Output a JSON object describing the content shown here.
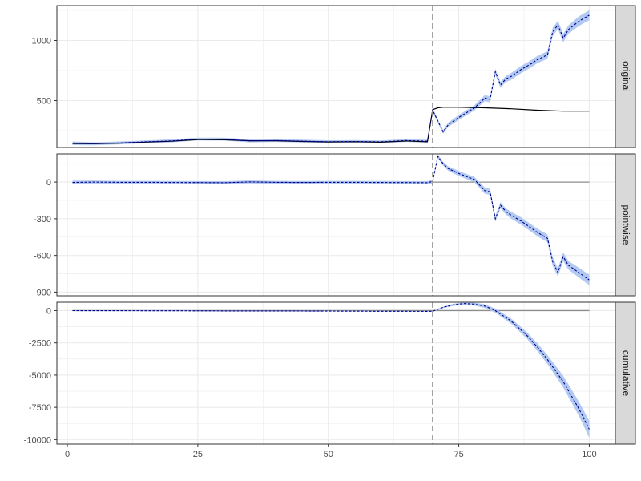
{
  "chart_data": {
    "type": "line",
    "x_ticks": [
      0,
      25,
      50,
      75,
      100
    ],
    "x_range": [
      -2,
      105
    ],
    "intervention_x": 70,
    "colors": {
      "observed": "#000000",
      "predicted": "#00008b",
      "band": "#aec6f0",
      "vline": "#999999",
      "zeroline": "#8c8c8c",
      "grid": "#ebebeb",
      "strip_bg": "#d9d9d9",
      "border": "#333333"
    },
    "panels": [
      {
        "strip": "original",
        "ylim": [
          110,
          1290
        ],
        "y_ticks": [
          500,
          1000
        ],
        "y_tick_labels": [
          "500",
          "1000"
        ],
        "zero_line": false,
        "observed": {
          "x": [
            1,
            5,
            10,
            15,
            20,
            25,
            30,
            35,
            40,
            45,
            50,
            55,
            60,
            65,
            69,
            70,
            71,
            72,
            75,
            80,
            85,
            90,
            95,
            100
          ],
          "y": [
            142,
            141,
            146,
            155,
            162,
            176,
            174,
            166,
            166,
            160,
            156,
            158,
            154,
            164,
            157,
            425,
            440,
            445,
            445,
            440,
            432,
            420,
            412,
            412
          ]
        },
        "predicted": {
          "x": [
            1,
            5,
            10,
            15,
            20,
            25,
            30,
            35,
            40,
            45,
            50,
            55,
            60,
            65,
            69,
            70,
            71,
            72,
            73,
            75,
            78,
            80,
            81,
            82,
            83,
            84,
            85,
            87,
            89,
            90,
            92,
            93,
            94,
            95,
            96,
            98,
            100
          ],
          "y": [
            145,
            141,
            148,
            157,
            165,
            180,
            179,
            165,
            168,
            163,
            158,
            160,
            157,
            168,
            162,
            420,
            330,
            240,
            300,
            360,
            440,
            520,
            510,
            740,
            630,
            680,
            700,
            760,
            810,
            840,
            880,
            1070,
            1130,
            1020,
            1090,
            1160,
            1210
          ],
          "band_half_width": [
            15,
            12,
            12,
            12,
            12,
            12,
            12,
            12,
            12,
            12,
            12,
            12,
            12,
            12,
            12,
            15,
            15,
            15,
            18,
            20,
            22,
            25,
            25,
            25,
            25,
            25,
            28,
            30,
            30,
            30,
            32,
            35,
            35,
            35,
            35,
            40,
            42
          ]
        }
      },
      {
        "strip": "pointwise",
        "ylim": [
          -930,
          230
        ],
        "y_ticks": [
          -900,
          -600,
          -300,
          0
        ],
        "y_tick_labels": [
          "-900",
          "-600",
          "-300",
          "0"
        ],
        "zero_line": true,
        "predicted": {
          "x": [
            1,
            5,
            10,
            15,
            20,
            25,
            30,
            35,
            40,
            45,
            50,
            55,
            60,
            65,
            69,
            70,
            71,
            72,
            73,
            75,
            78,
            80,
            81,
            82,
            83,
            84,
            85,
            87,
            89,
            90,
            92,
            93,
            94,
            95,
            96,
            98,
            100
          ],
          "y": [
            -3,
            0,
            -2,
            -2,
            -3,
            -4,
            -5,
            1,
            -2,
            -3,
            -2,
            -2,
            -3,
            -4,
            -5,
            5,
            210,
            150,
            110,
            70,
            20,
            -70,
            -80,
            -300,
            -190,
            -240,
            -270,
            -320,
            -380,
            -410,
            -460,
            -650,
            -740,
            -610,
            -680,
            -740,
            -800
          ],
          "band_half_width": [
            15,
            12,
            12,
            12,
            12,
            12,
            12,
            12,
            12,
            12,
            12,
            12,
            12,
            12,
            12,
            15,
            15,
            15,
            18,
            20,
            22,
            25,
            25,
            25,
            25,
            25,
            28,
            30,
            30,
            30,
            32,
            35,
            35,
            35,
            35,
            40,
            42
          ]
        }
      },
      {
        "strip": "cumulative",
        "ylim": [
          -10350,
          650
        ],
        "y_ticks": [
          -10000,
          -7500,
          -5000,
          -2500,
          0
        ],
        "y_tick_labels": [
          "-10000",
          "-7500",
          "-5000",
          "-2500",
          "0"
        ],
        "zero_line": true,
        "predicted": {
          "x": [
            1,
            10,
            20,
            30,
            40,
            50,
            60,
            69,
            70,
            72,
            74,
            76,
            78,
            80,
            82,
            85,
            88,
            90,
            92,
            95,
            98,
            100
          ],
          "y": [
            0,
            -10,
            -15,
            -25,
            -30,
            -40,
            -50,
            -60,
            -50,
            250,
            450,
            550,
            500,
            350,
            0,
            -800,
            -1900,
            -2800,
            -3800,
            -5500,
            -7600,
            -9200
          ],
          "band_half_width": [
            20,
            20,
            20,
            20,
            20,
            20,
            20,
            20,
            30,
            60,
            80,
            100,
            120,
            140,
            160,
            200,
            250,
            300,
            350,
            450,
            550,
            650
          ]
        }
      }
    ]
  }
}
